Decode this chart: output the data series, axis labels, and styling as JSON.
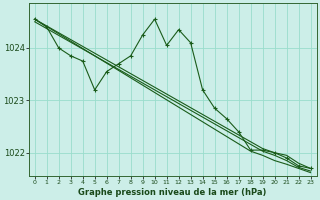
{
  "title": "Graphe pression niveau de la mer (hPa)",
  "bg_color": "#cceee8",
  "grid_color": "#99ddcc",
  "line_color": "#1a5c1a",
  "xlim": [
    -0.5,
    23.5
  ],
  "ylim": [
    1021.55,
    1024.85
  ],
  "yticks": [
    1022,
    1023,
    1024
  ],
  "xtick_labels": [
    "0",
    "1",
    "2",
    "3",
    "4",
    "5",
    "6",
    "7",
    "8",
    "9",
    "10",
    "11",
    "12",
    "13",
    "14",
    "15",
    "16",
    "17",
    "18",
    "19",
    "20",
    "21",
    "22",
    "23"
  ],
  "series_jagged": [
    1024.55,
    1024.4,
    1024.0,
    1023.85,
    1023.75,
    1023.2,
    1023.55,
    1023.7,
    1023.85,
    1024.25,
    1024.55,
    1024.05,
    1024.35,
    1024.1,
    1023.2,
    1022.85,
    1022.65,
    1022.4,
    1022.05,
    1022.05,
    1022.0,
    1021.9,
    1021.75,
    1021.7
  ],
  "series_diag1": [
    1024.55,
    1024.42,
    1024.29,
    1024.16,
    1024.03,
    1023.9,
    1023.77,
    1023.64,
    1023.51,
    1023.38,
    1023.25,
    1023.12,
    1022.99,
    1022.86,
    1022.73,
    1022.6,
    1022.47,
    1022.34,
    1022.21,
    1022.08,
    1022.0,
    1021.95,
    1021.8,
    1021.7
  ],
  "series_diag2": [
    1024.55,
    1024.41,
    1024.27,
    1024.13,
    1023.99,
    1023.85,
    1023.71,
    1023.57,
    1023.43,
    1023.29,
    1023.15,
    1023.01,
    1022.87,
    1022.73,
    1022.59,
    1022.45,
    1022.31,
    1022.17,
    1022.03,
    1021.95,
    1021.85,
    1021.78,
    1021.7,
    1021.62
  ],
  "series_diag3": [
    1024.5,
    1024.37,
    1024.24,
    1024.11,
    1023.98,
    1023.85,
    1023.72,
    1023.59,
    1023.46,
    1023.33,
    1023.2,
    1023.07,
    1022.94,
    1022.81,
    1022.68,
    1022.55,
    1022.42,
    1022.29,
    1022.16,
    1022.03,
    1021.95,
    1021.85,
    1021.72,
    1021.65
  ]
}
